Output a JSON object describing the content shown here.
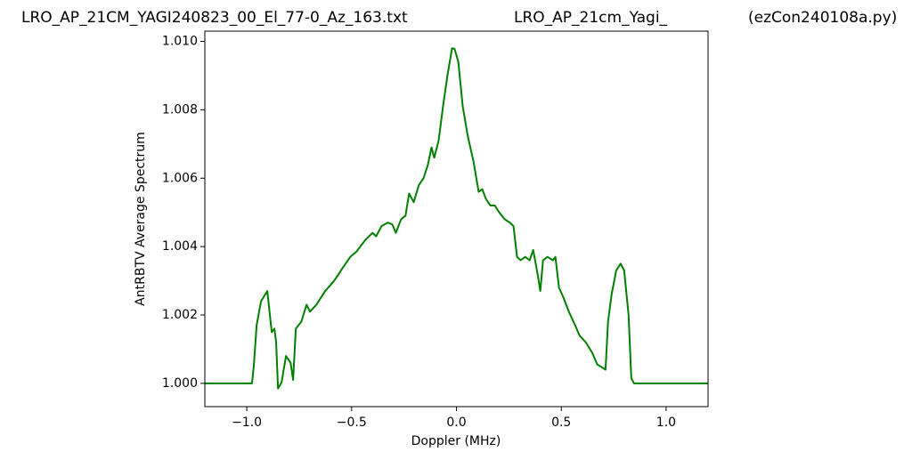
{
  "chart_data": {
    "type": "line",
    "title": [
      "LRO_AP_21CM_YAGI240823_00_El_77-0_Az_163.txt",
      "LRO_AP_21cm_Yagi_",
      "(ezCon240108a.py)"
    ],
    "xlabel": "Doppler (MHz)",
    "ylabel": "AntRBTV Average Spectrum",
    "xlim": [
      -1.2,
      1.2
    ],
    "ylim": [
      0.99932,
      1.0103
    ],
    "xticks": [
      {
        "value": -1.0,
        "label": "−1.0"
      },
      {
        "value": -0.5,
        "label": "−0.5"
      },
      {
        "value": 0.0,
        "label": "0.0"
      },
      {
        "value": 0.5,
        "label": "0.5"
      },
      {
        "value": 1.0,
        "label": "1.0"
      }
    ],
    "yticks": [
      {
        "value": 1.0,
        "label": "1.000"
      },
      {
        "value": 1.002,
        "label": "1.002"
      },
      {
        "value": 1.004,
        "label": "1.004"
      },
      {
        "value": 1.006,
        "label": "1.006"
      },
      {
        "value": 1.008,
        "label": "1.008"
      },
      {
        "value": 1.01,
        "label": "1.010"
      }
    ],
    "x": [
      -1.2,
      -0.975,
      -0.966,
      -0.953,
      -0.932,
      -0.902,
      -0.881,
      -0.868,
      -0.86,
      -0.851,
      -0.834,
      -0.813,
      -0.791,
      -0.779,
      -0.766,
      -0.74,
      -0.715,
      -0.698,
      -0.668,
      -0.626,
      -0.583,
      -0.54,
      -0.506,
      -0.477,
      -0.434,
      -0.4,
      -0.383,
      -0.357,
      -0.328,
      -0.306,
      -0.289,
      -0.264,
      -0.243,
      -0.226,
      -0.204,
      -0.179,
      -0.157,
      -0.136,
      -0.119,
      -0.106,
      -0.085,
      -0.064,
      -0.043,
      -0.021,
      -0.009,
      0.009,
      0.03,
      0.055,
      0.081,
      0.106,
      0.123,
      0.14,
      0.162,
      0.183,
      0.204,
      0.23,
      0.255,
      0.272,
      0.289,
      0.306,
      0.328,
      0.349,
      0.366,
      0.387,
      0.4,
      0.413,
      0.434,
      0.46,
      0.472,
      0.489,
      0.511,
      0.536,
      0.566,
      0.587,
      0.617,
      0.647,
      0.672,
      0.694,
      0.711,
      0.723,
      0.74,
      0.762,
      0.783,
      0.8,
      0.821,
      0.834,
      0.847,
      1.2
    ],
    "series": [
      {
        "color": "#008000",
        "values": [
          1.0,
          1.0,
          1.00055,
          1.0017,
          1.0024,
          1.0027,
          1.0015,
          1.0016,
          1.0012,
          0.99985,
          1.00003,
          1.0008,
          1.0006,
          1.0001,
          1.0016,
          1.0018,
          1.0023,
          1.0021,
          1.0023,
          1.0027,
          1.003,
          1.0034,
          1.0037,
          1.00385,
          1.0042,
          1.0044,
          1.0043,
          1.0046,
          1.0047,
          1.00465,
          1.0044,
          1.0048,
          1.0049,
          1.00555,
          1.0053,
          1.0058,
          1.006,
          1.0064,
          1.0069,
          1.0066,
          1.0071,
          1.0081,
          1.009,
          1.0098,
          1.00978,
          1.0094,
          1.0081,
          1.0072,
          1.0065,
          1.0056,
          1.00568,
          1.0054,
          1.0052,
          1.0052,
          1.005,
          1.0048,
          1.0047,
          1.0046,
          1.0037,
          1.0036,
          1.0037,
          1.0036,
          1.0039,
          1.0032,
          1.0027,
          1.0036,
          1.0037,
          1.0036,
          1.0037,
          1.0028,
          1.0025,
          1.0021,
          1.0017,
          1.0014,
          1.0012,
          1.0009,
          1.00055,
          1.00047,
          1.0004,
          1.0018,
          1.0026,
          1.0033,
          1.0035,
          1.0033,
          1.002,
          1.00015,
          1.0,
          1.0
        ]
      }
    ]
  }
}
